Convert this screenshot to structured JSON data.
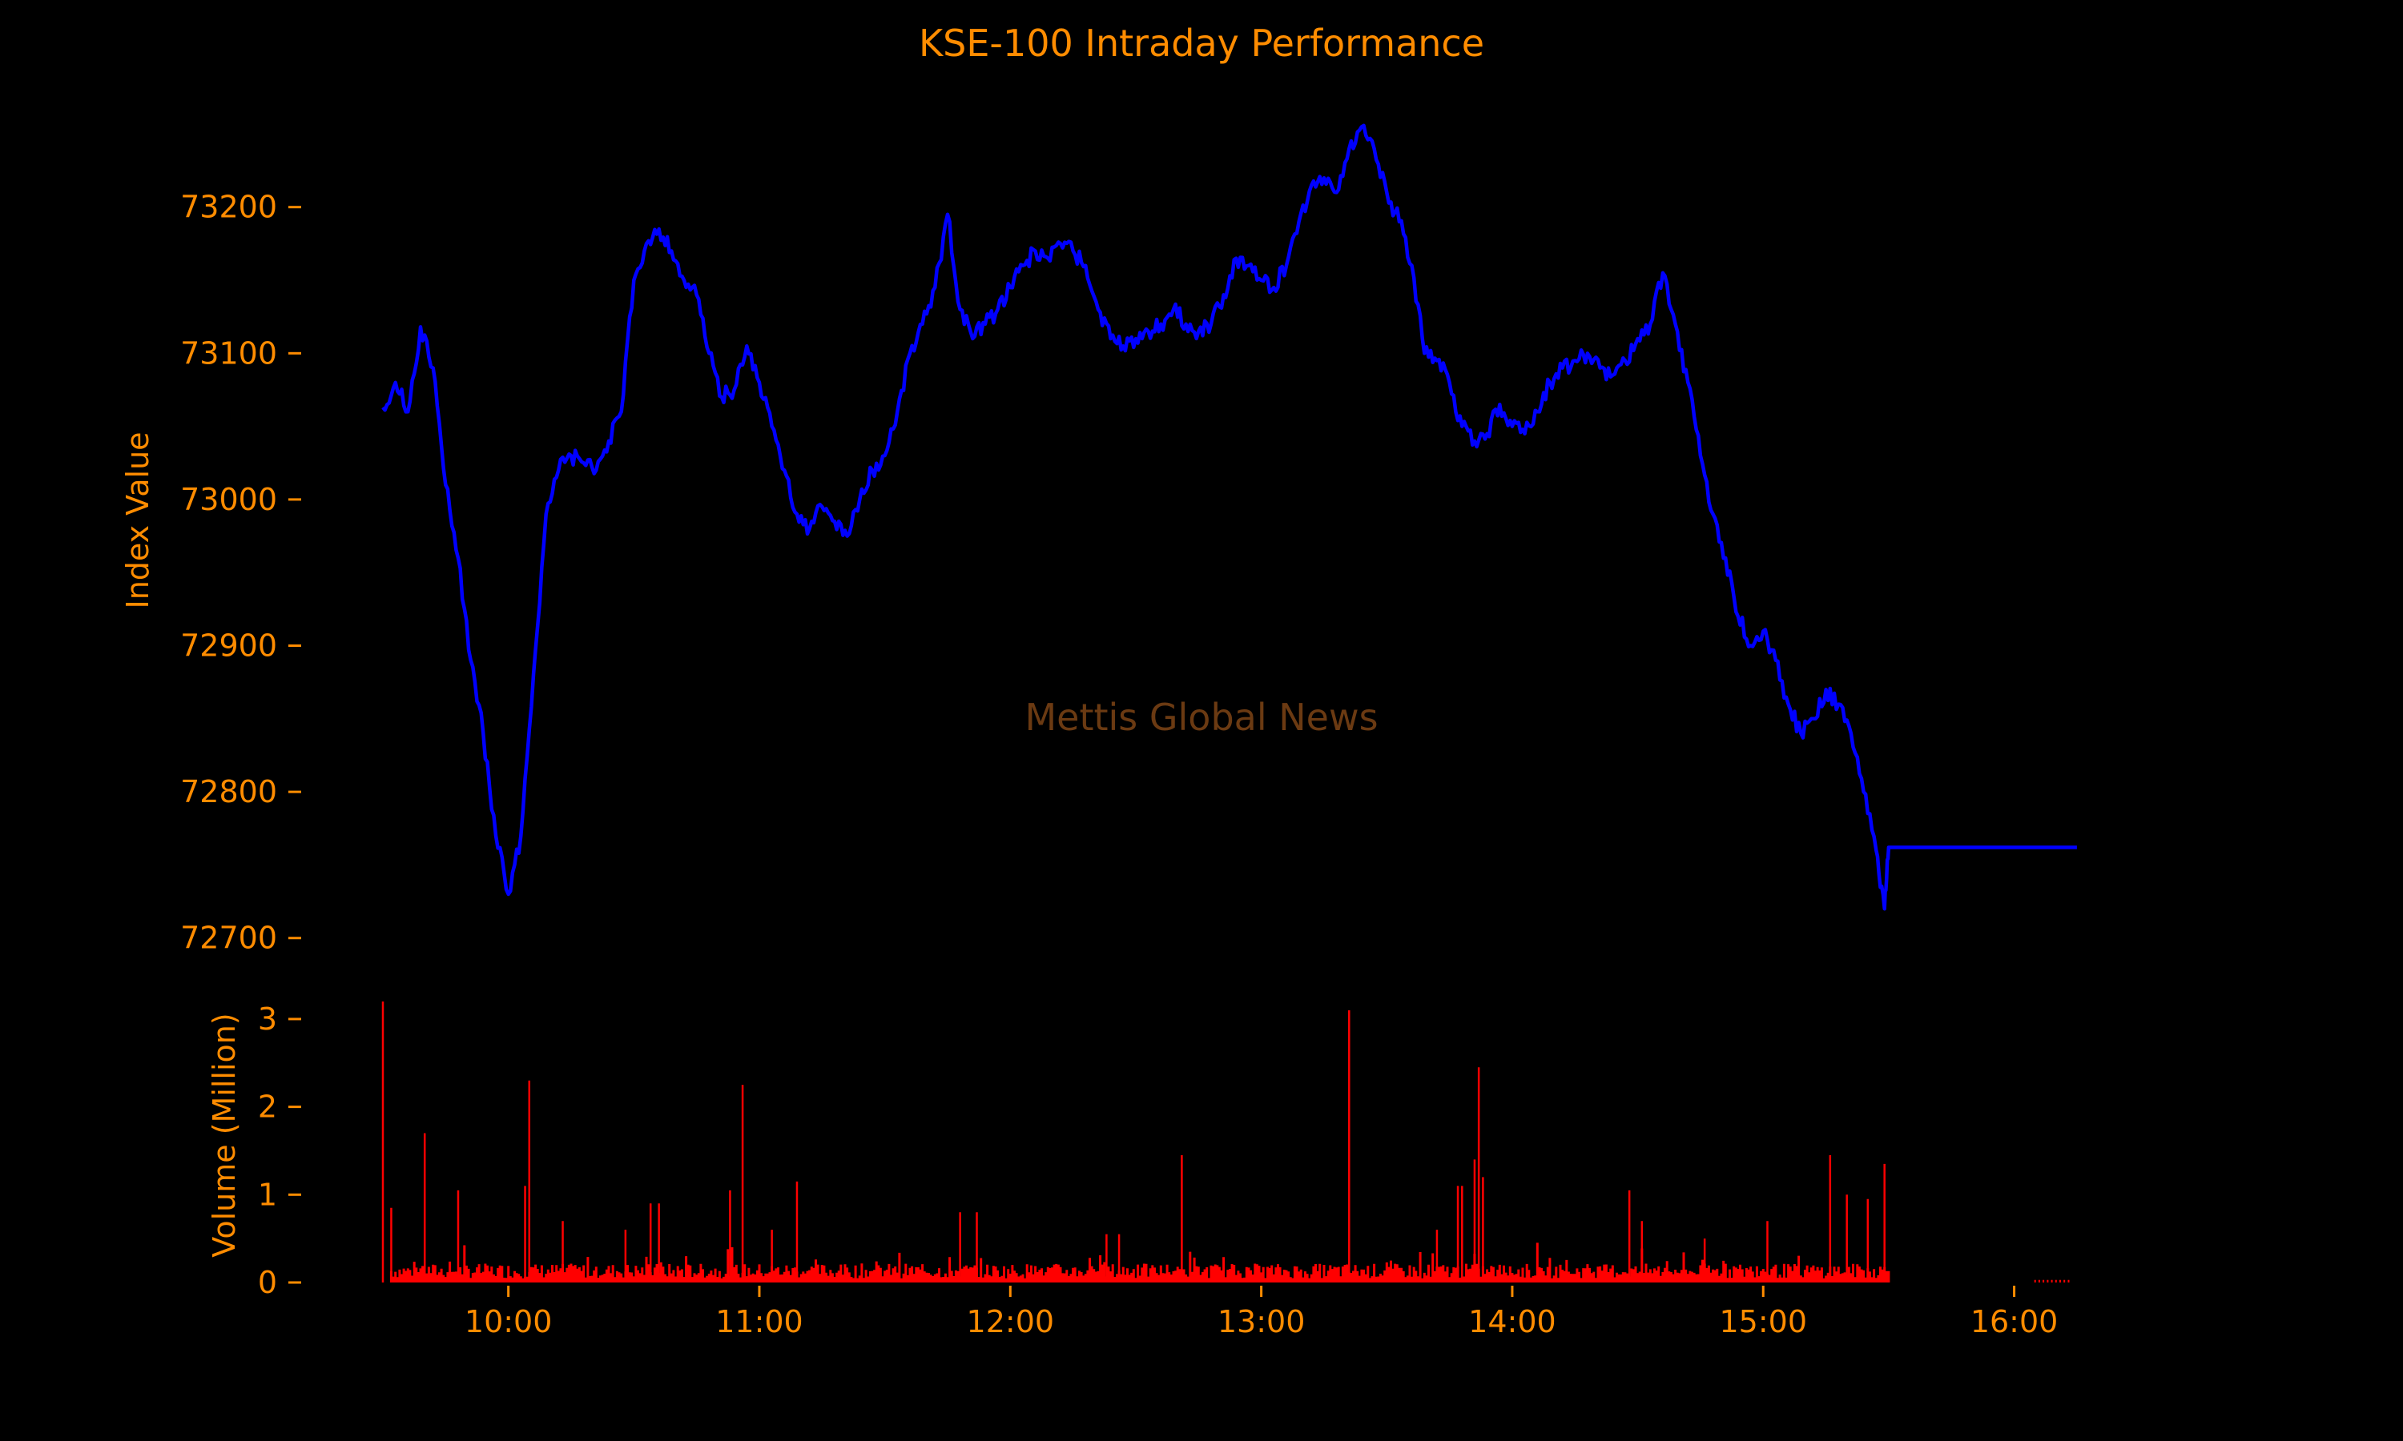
{
  "chart_data": {
    "type": "line",
    "title": "KSE-100 Intraday Performance",
    "watermark": "Mettis Global News",
    "colors": {
      "background": "#000000",
      "text": "#ff8c00",
      "price_line": "#0000ff",
      "volume_bars": "#ff0000",
      "watermark": "#6b3a12"
    },
    "grid": false,
    "legend": "none",
    "x_axis": {
      "type": "time",
      "range": [
        "09:30",
        "16:15"
      ],
      "ticks": [
        "10:00",
        "11:00",
        "12:00",
        "13:00",
        "14:00",
        "15:00",
        "16:00"
      ]
    },
    "price_panel": {
      "ylabel": "Index Value",
      "ylim": [
        72690,
        73265
      ],
      "yticks": [
        "72700",
        "72800",
        "72900",
        "73000",
        "73100",
        "73200"
      ],
      "series": [
        {
          "x": [
            "09:30",
            "09:33",
            "09:36",
            "09:39",
            "09:42",
            "09:45",
            "09:48",
            "09:51",
            "09:54",
            "09:57",
            "10:00",
            "10:03",
            "10:06",
            "10:09",
            "10:12",
            "10:15",
            "10:18",
            "10:21",
            "10:24",
            "10:27",
            "10:30",
            "10:33",
            "10:36",
            "10:39",
            "10:42",
            "10:45",
            "10:48",
            "10:51",
            "10:54",
            "10:57",
            "11:00",
            "11:03",
            "11:06",
            "11:09",
            "11:12",
            "11:15",
            "11:18",
            "11:21",
            "11:24",
            "11:27",
            "11:30",
            "11:33",
            "11:36",
            "11:39",
            "11:42",
            "11:45",
            "11:48",
            "11:51",
            "11:54",
            "11:57",
            "12:00",
            "12:03",
            "12:06",
            "12:09",
            "12:12",
            "12:15",
            "12:18",
            "12:21",
            "12:24",
            "12:27",
            "12:30",
            "12:33",
            "12:36",
            "12:39",
            "12:42",
            "12:45",
            "12:48",
            "12:51",
            "12:54",
            "12:57",
            "13:00",
            "13:03",
            "13:06",
            "13:09",
            "13:12",
            "13:15",
            "13:18",
            "13:21",
            "13:24",
            "13:27",
            "13:30",
            "13:33",
            "13:36",
            "13:39",
            "13:42",
            "13:45",
            "13:48",
            "13:51",
            "13:54",
            "13:57",
            "14:00",
            "14:03",
            "14:06",
            "14:09",
            "14:12",
            "14:15",
            "14:18",
            "14:21",
            "14:24",
            "14:27",
            "14:30",
            "14:33",
            "14:36",
            "14:39",
            "14:42",
            "14:45",
            "14:48",
            "14:51",
            "14:54",
            "14:57",
            "15:00",
            "15:03",
            "15:06",
            "15:09",
            "15:12",
            "15:15",
            "15:18",
            "15:21",
            "15:24",
            "15:27",
            "15:29",
            "15:30",
            "16:15"
          ],
          "y": [
            73063,
            73080,
            73060,
            73118,
            73090,
            73010,
            72960,
            72890,
            72840,
            72770,
            72730,
            72770,
            72880,
            72990,
            73020,
            73030,
            73025,
            73020,
            73040,
            73060,
            73150,
            73175,
            73185,
            73170,
            73150,
            73140,
            73100,
            73070,
            73075,
            73105,
            73080,
            73050,
            73020,
            72990,
            72980,
            72995,
            72985,
            72975,
            73000,
            73020,
            73030,
            73060,
            73100,
            73120,
            73145,
            73195,
            73130,
            73110,
            73120,
            73130,
            73145,
            73160,
            73170,
            73165,
            73175,
            73170,
            73160,
            73130,
            73110,
            73105,
            73110,
            73115,
            73120,
            73130,
            73120,
            73115,
            73120,
            73140,
            73165,
            73160,
            73150,
            73145,
            73160,
            73190,
            73215,
            73220,
            73210,
            73240,
            73255,
            73240,
            73210,
            73190,
            73160,
            73100,
            73095,
            73080,
            73050,
            73040,
            73045,
            73065,
            73050,
            73045,
            73060,
            73080,
            73090,
            73095,
            73100,
            73090,
            73085,
            73095,
            73110,
            73120,
            73155,
            73120,
            73080,
            73030,
            72990,
            72960,
            72920,
            72900,
            72910,
            72890,
            72860,
            72840,
            72850,
            72870,
            72860,
            72840,
            72800,
            72760,
            72720,
            72762,
            72762
          ]
        }
      ]
    },
    "volume_panel": {
      "ylabel": "Volume (Million)",
      "ylim": [
        0,
        3.3
      ],
      "yticks": [
        "0",
        "1",
        "2",
        "3"
      ],
      "series": [
        {
          "name": "volume",
          "spikes": [
            {
              "x": "09:30",
              "y": 3.2
            },
            {
              "x": "09:32",
              "y": 0.85
            },
            {
              "x": "09:40",
              "y": 1.7
            },
            {
              "x": "09:48",
              "y": 1.05
            },
            {
              "x": "10:04",
              "y": 1.1
            },
            {
              "x": "10:05",
              "y": 2.3
            },
            {
              "x": "10:13",
              "y": 0.7
            },
            {
              "x": "10:28",
              "y": 0.6
            },
            {
              "x": "10:34",
              "y": 0.9
            },
            {
              "x": "10:36",
              "y": 0.9
            },
            {
              "x": "10:53",
              "y": 1.05
            },
            {
              "x": "10:56",
              "y": 2.25
            },
            {
              "x": "11:03",
              "y": 0.6
            },
            {
              "x": "11:09",
              "y": 1.15
            },
            {
              "x": "11:48",
              "y": 0.8
            },
            {
              "x": "11:52",
              "y": 0.8
            },
            {
              "x": "12:23",
              "y": 0.55
            },
            {
              "x": "12:26",
              "y": 0.55
            },
            {
              "x": "12:41",
              "y": 1.45
            },
            {
              "x": "13:21",
              "y": 3.1
            },
            {
              "x": "13:42",
              "y": 0.6
            },
            {
              "x": "13:47",
              "y": 1.1
            },
            {
              "x": "13:48",
              "y": 1.1
            },
            {
              "x": "13:51",
              "y": 1.4
            },
            {
              "x": "13:52",
              "y": 2.45
            },
            {
              "x": "13:53",
              "y": 1.2
            },
            {
              "x": "14:28",
              "y": 1.05
            },
            {
              "x": "14:31",
              "y": 0.7
            },
            {
              "x": "14:46",
              "y": 0.5
            },
            {
              "x": "15:01",
              "y": 0.7
            },
            {
              "x": "15:16",
              "y": 1.45
            },
            {
              "x": "15:20",
              "y": 1.0
            },
            {
              "x": "15:25",
              "y": 0.95
            },
            {
              "x": "15:29",
              "y": 1.35
            }
          ],
          "baseline_level": 0.12
        }
      ]
    }
  }
}
